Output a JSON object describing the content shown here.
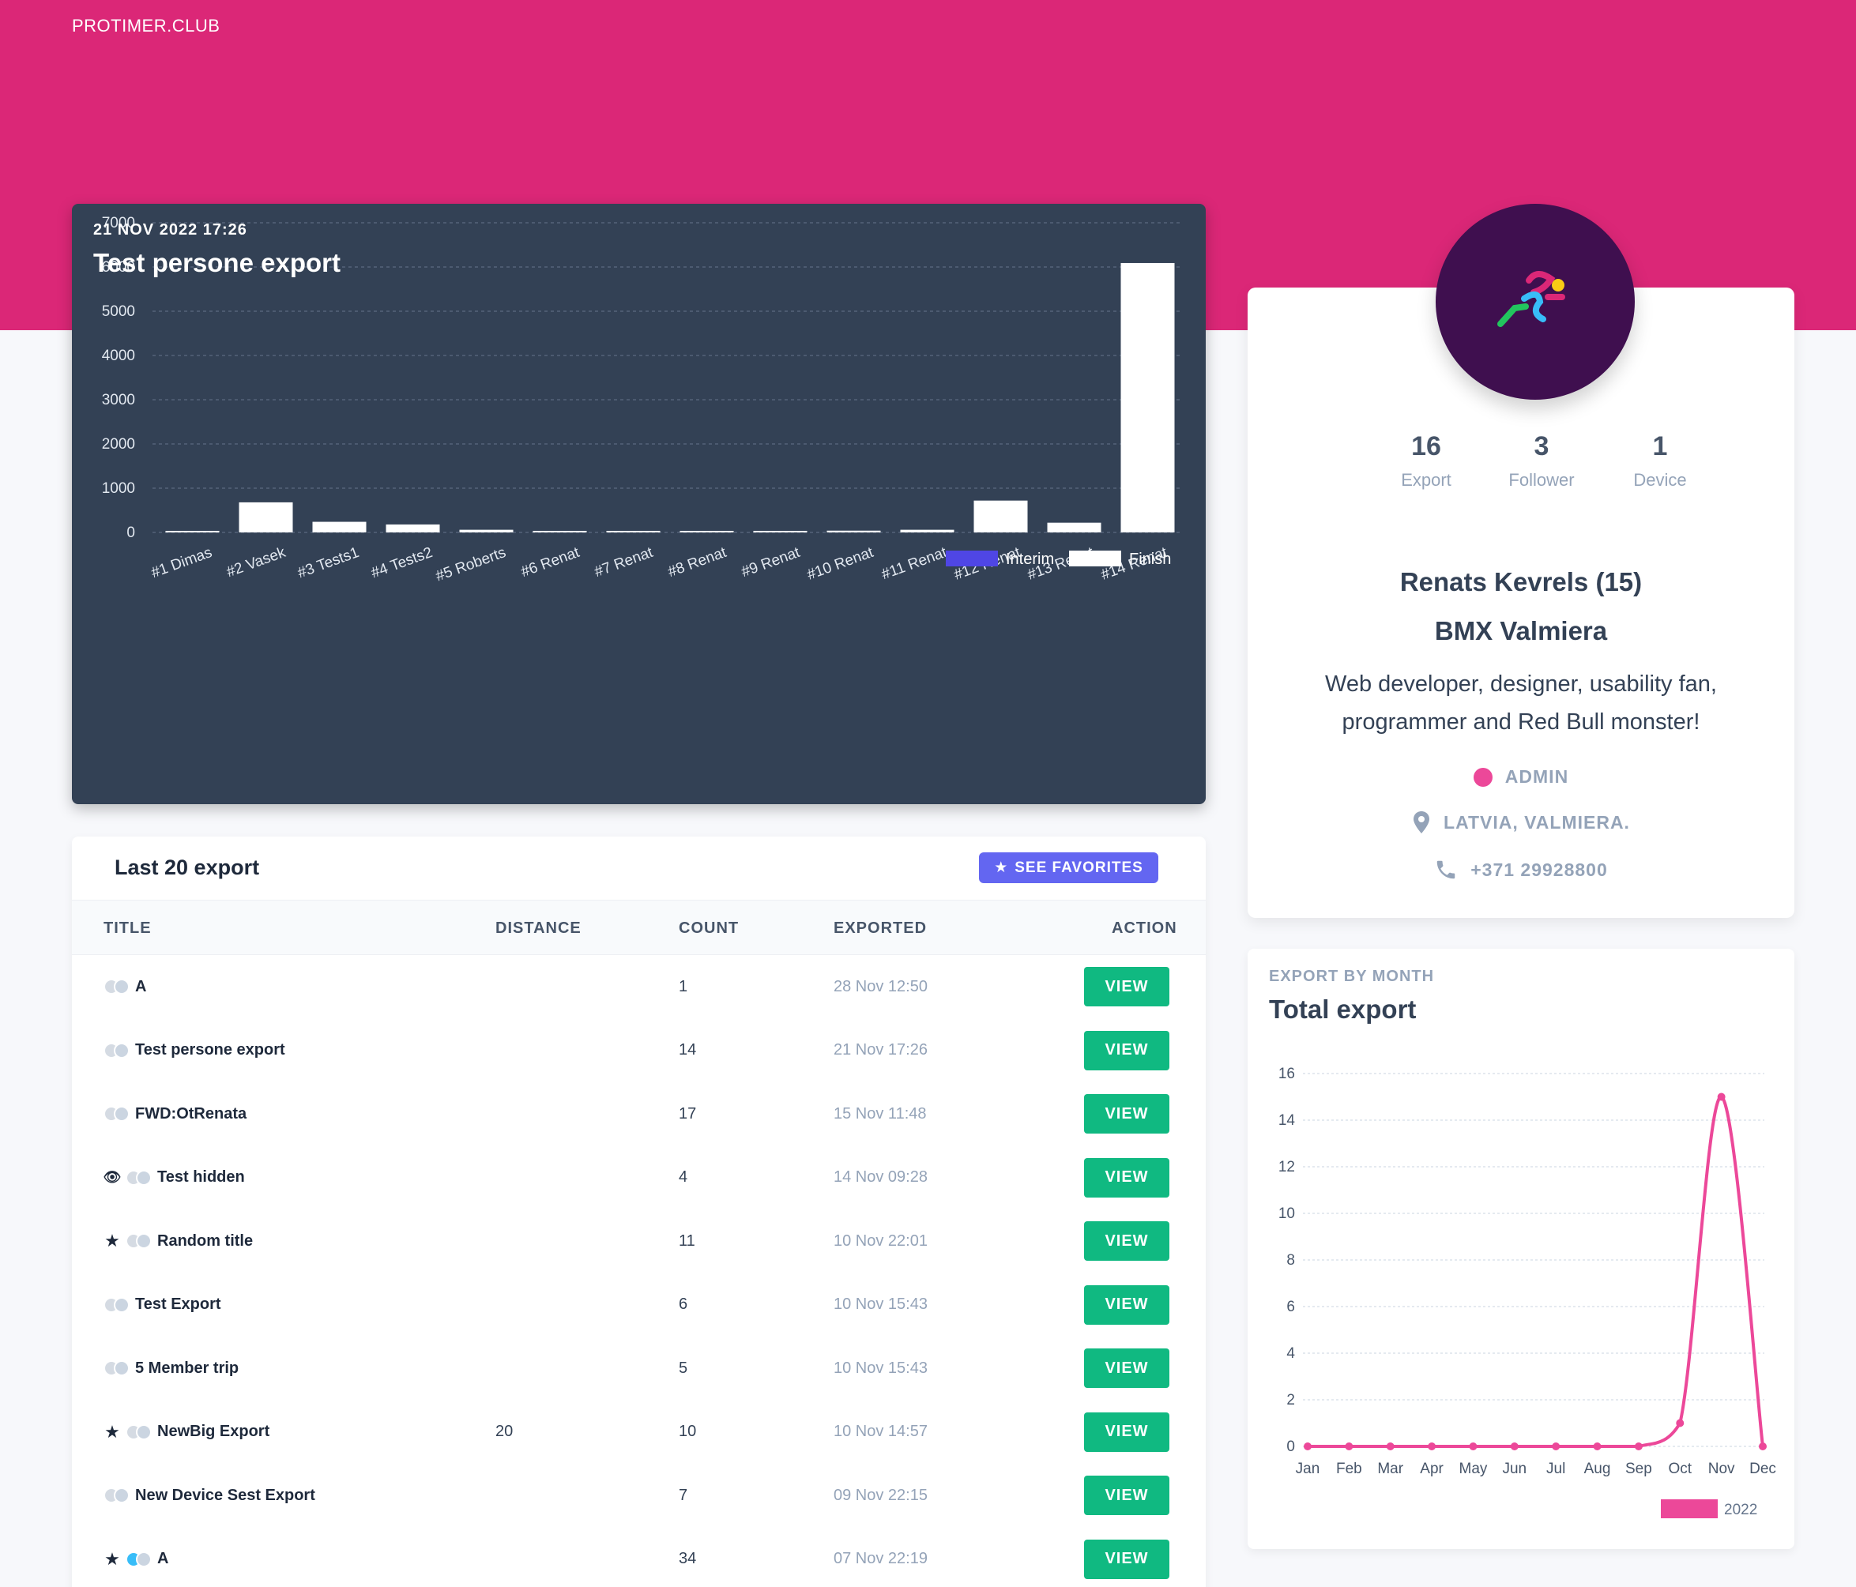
{
  "brand": "PROTIMER.CLUB",
  "export_chart": {
    "kicker": "21 NOV 2022 17:26",
    "title": "Test persone export"
  },
  "chart_data": [
    {
      "type": "bar",
      "categories": [
        "#1 Dimas",
        "#2 Vasek",
        "#3 Tests1",
        "#4 Tests2",
        "#5 Roberts",
        "#6 Renat",
        "#7 Renat",
        "#8 Renat",
        "#9 Renat",
        "#10 Renat",
        "#11 Renat",
        "#12 Renat",
        "#13 Renat",
        "#14 Renat"
      ],
      "series": [
        {
          "name": "Interim",
          "color": "#4f46e5",
          "values": [
            0,
            0,
            0,
            0,
            0,
            0,
            0,
            0,
            0,
            0,
            0,
            0,
            0,
            0
          ]
        },
        {
          "name": "Finish",
          "color": "#ffffff",
          "values": [
            20,
            680,
            240,
            180,
            60,
            10,
            10,
            20,
            10,
            40,
            60,
            720,
            220,
            6090
          ]
        }
      ],
      "ylim": [
        0,
        7000
      ],
      "yticks": [
        0,
        1000,
        2000,
        3000,
        4000,
        5000,
        6000,
        7000
      ],
      "grid": true,
      "legend": "bottom-right"
    },
    {
      "type": "line",
      "categories": [
        "Jan",
        "Feb",
        "Mar",
        "Apr",
        "May",
        "Jun",
        "Jul",
        "Aug",
        "Sep",
        "Oct",
        "Nov",
        "Dec"
      ],
      "series": [
        {
          "name": "2022",
          "color": "#ec4899",
          "values": [
            0,
            0,
            0,
            0,
            0,
            0,
            0,
            0,
            0,
            1,
            15,
            0
          ]
        }
      ],
      "ylim": [
        0,
        16
      ],
      "yticks": [
        0,
        2,
        4,
        6,
        8,
        10,
        12,
        14,
        16
      ],
      "grid": true,
      "legend": "bottom-right"
    }
  ],
  "exports_table": {
    "title": "Last 20 export",
    "favorites_label": "SEE FAVORITES",
    "columns": [
      "TITLE",
      "DISTANCE",
      "COUNT",
      "EXPORTED",
      "ACTION"
    ],
    "rows": [
      {
        "title": "A",
        "distance": "",
        "count": "1",
        "exported": "28 Nov 12:50",
        "action": "VIEW",
        "starred": false,
        "hidden": false,
        "toggle_on": false
      },
      {
        "title": "Test persone export",
        "distance": "",
        "count": "14",
        "exported": "21 Nov 17:26",
        "action": "VIEW",
        "starred": false,
        "hidden": false,
        "toggle_on": false
      },
      {
        "title": "FWD:OtRenata",
        "distance": "",
        "count": "17",
        "exported": "15 Nov 11:48",
        "action": "VIEW",
        "starred": false,
        "hidden": false,
        "toggle_on": false
      },
      {
        "title": "Test hidden",
        "distance": "",
        "count": "4",
        "exported": "14 Nov 09:28",
        "action": "VIEW",
        "starred": false,
        "hidden": true,
        "toggle_on": false
      },
      {
        "title": "Random title",
        "distance": "",
        "count": "11",
        "exported": "10 Nov 22:01",
        "action": "VIEW",
        "starred": true,
        "hidden": false,
        "toggle_on": false
      },
      {
        "title": "Test Export",
        "distance": "",
        "count": "6",
        "exported": "10 Nov 15:43",
        "action": "VIEW",
        "starred": false,
        "hidden": false,
        "toggle_on": false
      },
      {
        "title": "5 Member trip",
        "distance": "",
        "count": "5",
        "exported": "10 Nov 15:43",
        "action": "VIEW",
        "starred": false,
        "hidden": false,
        "toggle_on": false
      },
      {
        "title": "NewBig Export",
        "distance": "20",
        "count": "10",
        "exported": "10 Nov 14:57",
        "action": "VIEW",
        "starred": true,
        "hidden": false,
        "toggle_on": false
      },
      {
        "title": "New Device Sest Export",
        "distance": "",
        "count": "7",
        "exported": "09 Nov 22:15",
        "action": "VIEW",
        "starred": false,
        "hidden": false,
        "toggle_on": false
      },
      {
        "title": "A",
        "distance": "",
        "count": "34",
        "exported": "07 Nov 22:19",
        "action": "VIEW",
        "starred": true,
        "hidden": false,
        "toggle_on": true
      }
    ]
  },
  "profile": {
    "stats": [
      {
        "value": "16",
        "label": "Export"
      },
      {
        "value": "3",
        "label": "Follower"
      },
      {
        "value": "1",
        "label": "Device"
      }
    ],
    "name": "Renats Kevrels (15)",
    "club": "BMX Valmiera",
    "bio": "Web developer, designer, usability fan, programmer and Red Bull monster!",
    "role": "ADMIN",
    "location": "LATVIA, VALMIERA.",
    "phone": "+371 29928800",
    "avatar_icon": "runner-logo-icon",
    "role_color": "#ec4899"
  },
  "monthly_chart": {
    "kicker": "EXPORT BY MONTH",
    "title": "Total export"
  }
}
